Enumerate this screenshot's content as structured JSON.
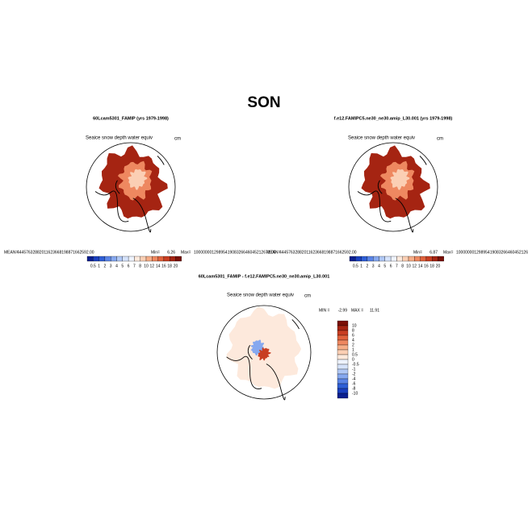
{
  "title": "SON",
  "panels": [
    {
      "title": "60Lcam5301_FAMIP (yrs 1979-1998)",
      "variable": "Seaice snow depth water equiv",
      "units": "cm",
      "mean_label": "MEAN=",
      "mean": "44457632882011623668198871662592.00",
      "min_label": "Min=",
      "min": 6.26,
      "max_label": "Max=",
      "max": "1000000012989541908326646045212672.00",
      "colorbar": [
        0.5,
        1,
        2,
        3,
        4,
        5,
        6,
        7,
        8,
        10,
        12,
        14,
        16,
        18,
        20
      ]
    },
    {
      "title": "f.e12.FAMIPC5.ne30_ne30.amip_L30.001 (yrs 1979-1998)",
      "variable": "Seaice snow depth water equiv",
      "units": "cm",
      "mean_label": "MEAN=",
      "mean": "44457632882011623668198871662592.00",
      "min_label": "Min=",
      "min": 6.87,
      "max_label": "Max=",
      "max": "1000000012989541908326646045212672.00",
      "colorbar": [
        0.5,
        1,
        2,
        3,
        4,
        5,
        6,
        7,
        8,
        10,
        12,
        14,
        16,
        18,
        20
      ]
    }
  ],
  "difference": {
    "title": "60Lcam5301_FAMIP - f.e12.FAMIPC5.ne30_ne30.amip_L30.001",
    "variable": "Seaice snow depth water equiv",
    "units": "cm",
    "min_label": "MIN =",
    "min": -2.99,
    "max_label": "MAX =",
    "max": 11.91,
    "colorbar": [
      10,
      8,
      6,
      4,
      2,
      1,
      0.5,
      0,
      -0.5,
      -1,
      -2,
      -4,
      -6,
      -8,
      -10
    ]
  }
}
